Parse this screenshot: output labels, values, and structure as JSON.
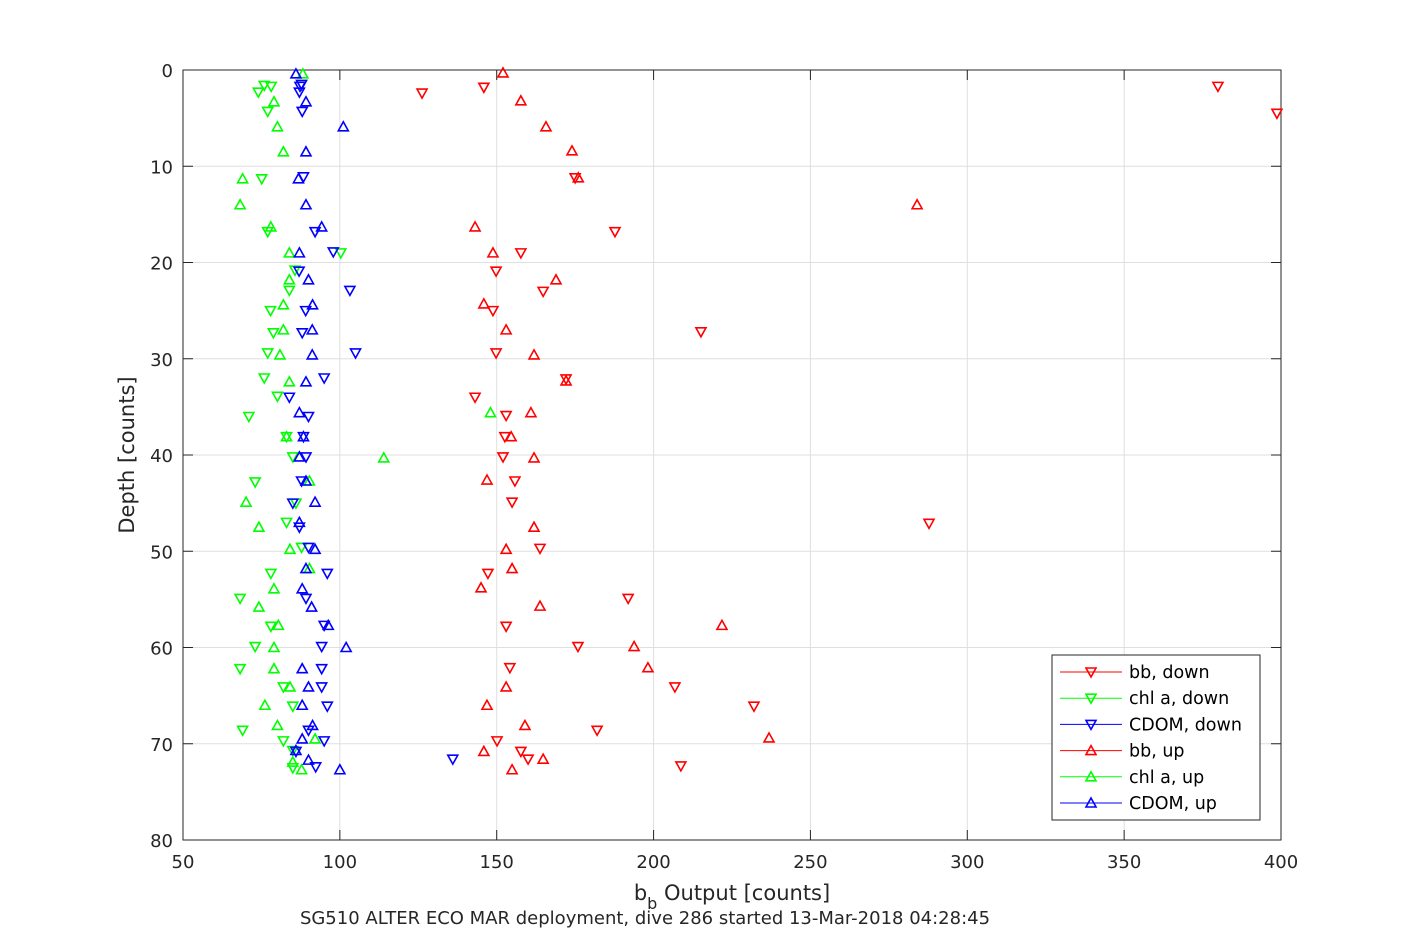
{
  "chart_data": {
    "type": "scatter",
    "title": "",
    "xlabel_main": "b",
    "xlabel_sub": "b",
    "xlabel_rest": " Output [counts]",
    "ylabel": "Depth [counts]",
    "caption": "SG510 ALTER ECO MAR deployment, dive 286 started 13-Mar-2018 04:28:45",
    "xlim": [
      50,
      400
    ],
    "ylim": [
      0,
      80
    ],
    "y_reversed": true,
    "grid": true,
    "xticks": [
      "50",
      "100",
      "150",
      "200",
      "250",
      "300",
      "350",
      "400"
    ],
    "yticks": [
      "0",
      "10",
      "20",
      "30",
      "40",
      "50",
      "60",
      "70",
      "80"
    ],
    "legend_position": "bottom-right",
    "series": [
      {
        "name": "bb, down",
        "color": "#ff0000",
        "marker": "triangle-down",
        "points": [
          [
            379.9,
            1.7
          ],
          [
            398.7,
            4.5
          ],
          [
            145.9,
            1.8
          ],
          [
            126.2,
            2.4
          ],
          [
            175,
            11.2
          ],
          [
            187.7,
            16.8
          ],
          [
            157.7,
            19
          ],
          [
            149.8,
            20.9
          ],
          [
            164.8,
            23
          ],
          [
            148.8,
            25
          ],
          [
            215.1,
            27.2
          ],
          [
            149.8,
            29.4
          ],
          [
            172.1,
            32.1
          ],
          [
            143.1,
            34
          ],
          [
            153,
            35.9
          ],
          [
            152.6,
            38.1
          ],
          [
            152,
            40.2
          ],
          [
            155.8,
            42.7
          ],
          [
            154.9,
            44.9
          ],
          [
            287.8,
            47.1
          ],
          [
            163.8,
            49.7
          ],
          [
            147.2,
            52.3
          ],
          [
            191.9,
            54.9
          ],
          [
            153,
            57.8
          ],
          [
            175.9,
            59.9
          ],
          [
            154.2,
            62.1
          ],
          [
            206.8,
            64.1
          ],
          [
            232,
            66.1
          ],
          [
            182,
            68.6
          ],
          [
            150.1,
            69.7
          ],
          [
            157.7,
            70.8
          ],
          [
            160,
            71.6
          ],
          [
            208.7,
            72.3
          ]
        ]
      },
      {
        "name": "chl a, down",
        "color": "#00ff00",
        "marker": "triangle-down",
        "points": [
          [
            75.9,
            1.6
          ],
          [
            78.1,
            1.7
          ],
          [
            74,
            2.3
          ],
          [
            77,
            4.3
          ],
          [
            75.1,
            11.3
          ],
          [
            77,
            16.8
          ],
          [
            100.3,
            19
          ],
          [
            85.7,
            20.8
          ],
          [
            83.9,
            22.9
          ],
          [
            77.9,
            25
          ],
          [
            78.8,
            27.3
          ],
          [
            77,
            29.4
          ],
          [
            75.9,
            32
          ],
          [
            80.1,
            33.9
          ],
          [
            71,
            36
          ],
          [
            83,
            38.1
          ],
          [
            85,
            40.2
          ],
          [
            73,
            42.8
          ],
          [
            86,
            45
          ],
          [
            83,
            47
          ],
          [
            87.8,
            49.6
          ],
          [
            78,
            52.3
          ],
          [
            68.2,
            54.9
          ],
          [
            78,
            57.8
          ],
          [
            73,
            59.9
          ],
          [
            68.2,
            62.2
          ],
          [
            82,
            64.1
          ],
          [
            85,
            66.1
          ],
          [
            69,
            68.6
          ],
          [
            82,
            69.7
          ],
          [
            85,
            70.7
          ],
          [
            85,
            72.5
          ]
        ]
      },
      {
        "name": "CDOM, down",
        "color": "#0000ff",
        "marker": "triangle-down",
        "points": [
          [
            87.8,
            1.5
          ],
          [
            87.3,
            1.7
          ],
          [
            87.1,
            2.3
          ],
          [
            88,
            4.3
          ],
          [
            88.4,
            11.1
          ],
          [
            92.1,
            16.8
          ],
          [
            97.9,
            18.9
          ],
          [
            87,
            20.9
          ],
          [
            103.2,
            22.9
          ],
          [
            89.1,
            25
          ],
          [
            88,
            27.3
          ],
          [
            105,
            29.4
          ],
          [
            95,
            32
          ],
          [
            83.9,
            34
          ],
          [
            90,
            36
          ],
          [
            88.4,
            38.1
          ],
          [
            89.2,
            40.2
          ],
          [
            87.8,
            42.7
          ],
          [
            85,
            45
          ],
          [
            87.1,
            47.5
          ],
          [
            90,
            49.6
          ],
          [
            96,
            52.3
          ],
          [
            89.2,
            54.9
          ],
          [
            95,
            57.7
          ],
          [
            94.2,
            59.9
          ],
          [
            94.2,
            62.2
          ],
          [
            94.2,
            64.1
          ],
          [
            96,
            66.1
          ],
          [
            90,
            68.6
          ],
          [
            95,
            69.7
          ],
          [
            86,
            70.8
          ],
          [
            136,
            71.6
          ],
          [
            92.3,
            72.4
          ]
        ]
      },
      {
        "name": "bb, up",
        "color": "#ff0000",
        "marker": "triangle-up",
        "points": [
          [
            152,
            0.3
          ],
          [
            157.7,
            3.2
          ],
          [
            165.7,
            5.9
          ],
          [
            174,
            8.4
          ],
          [
            176,
            11.2
          ],
          [
            284,
            14
          ],
          [
            143.1,
            16.3
          ],
          [
            148.8,
            19
          ],
          [
            168.9,
            21.8
          ],
          [
            145.9,
            24.3
          ],
          [
            153,
            27
          ],
          [
            161.9,
            29.6
          ],
          [
            172.1,
            32.3
          ],
          [
            160.9,
            35.6
          ],
          [
            154.6,
            38.1
          ],
          [
            161.9,
            40.3
          ],
          [
            146.9,
            42.6
          ],
          [
            161.9,
            47.5
          ],
          [
            153,
            49.8
          ],
          [
            154.9,
            51.8
          ],
          [
            145,
            53.8
          ],
          [
            163.8,
            55.7
          ],
          [
            221.8,
            57.7
          ],
          [
            193.8,
            59.9
          ],
          [
            198.2,
            62.1
          ],
          [
            153,
            64.1
          ],
          [
            146.9,
            66
          ],
          [
            159,
            68.1
          ],
          [
            236.8,
            69.4
          ],
          [
            145.9,
            70.8
          ],
          [
            164.8,
            71.6
          ],
          [
            154.9,
            72.7
          ]
        ]
      },
      {
        "name": "chl a, up",
        "color": "#00ff00",
        "marker": "triangle-up",
        "points": [
          [
            88.2,
            0.4
          ],
          [
            79,
            3.3
          ],
          [
            80.1,
            5.9
          ],
          [
            82,
            8.5
          ],
          [
            69,
            11.3
          ],
          [
            68.2,
            14
          ],
          [
            78,
            16.3
          ],
          [
            83.9,
            19
          ],
          [
            83.9,
            21.8
          ],
          [
            82,
            24.4
          ],
          [
            82,
            27
          ],
          [
            80.9,
            29.6
          ],
          [
            83.9,
            32.4
          ],
          [
            148,
            35.6
          ],
          [
            83,
            38.1
          ],
          [
            114,
            40.3
          ],
          [
            90.3,
            42.7
          ],
          [
            70.1,
            44.9
          ],
          [
            74.2,
            47.5
          ],
          [
            84.1,
            49.8
          ],
          [
            90.3,
            51.8
          ],
          [
            79,
            53.9
          ],
          [
            74.2,
            55.8
          ],
          [
            80.4,
            57.7
          ],
          [
            79,
            60
          ],
          [
            79,
            62.2
          ],
          [
            84.1,
            64.1
          ],
          [
            76.1,
            66
          ],
          [
            80.1,
            68.1
          ],
          [
            92.1,
            69.5
          ],
          [
            85,
            71.9
          ],
          [
            87.8,
            72.7
          ]
        ]
      },
      {
        "name": "CDOM, up",
        "color": "#0000ff",
        "marker": "triangle-up",
        "points": [
          [
            86,
            0.4
          ],
          [
            89.2,
            3.3
          ],
          [
            101.1,
            5.9
          ],
          [
            89.2,
            8.5
          ],
          [
            86.8,
            11.3
          ],
          [
            89.2,
            14
          ],
          [
            94.2,
            16.3
          ],
          [
            87.1,
            19
          ],
          [
            90,
            21.8
          ],
          [
            91.3,
            24.4
          ],
          [
            91.2,
            27
          ],
          [
            91.2,
            29.6
          ],
          [
            89.2,
            32.4
          ],
          [
            87.1,
            35.6
          ],
          [
            88.4,
            38.1
          ],
          [
            87.1,
            40.2
          ],
          [
            89.2,
            42.7
          ],
          [
            92.1,
            44.9
          ],
          [
            87.1,
            47
          ],
          [
            92.1,
            49.8
          ],
          [
            89.2,
            51.8
          ],
          [
            88,
            53.9
          ],
          [
            91,
            55.8
          ],
          [
            96.3,
            57.7
          ],
          [
            102,
            60
          ],
          [
            88,
            62.2
          ],
          [
            90,
            64.1
          ],
          [
            88,
            66
          ],
          [
            91.3,
            68.1
          ],
          [
            88,
            69.5
          ],
          [
            86,
            70.7
          ],
          [
            90,
            71.7
          ],
          [
            100,
            72.7
          ]
        ]
      }
    ]
  }
}
